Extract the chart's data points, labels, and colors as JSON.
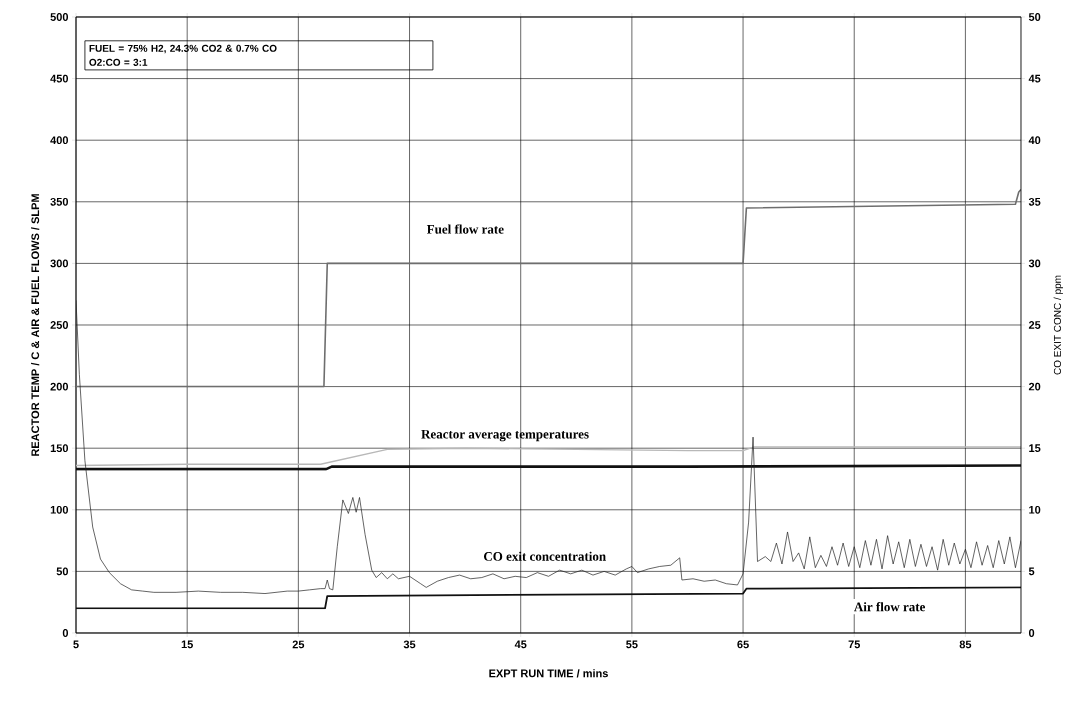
{
  "chart_data": {
    "type": "line",
    "xlabel": "EXPT RUN TIME / mins",
    "ylabel": "REACTOR TEMP / C & AIR & FUEL FLOWS / SLPM",
    "y2label": "CO EXIT CONC / ppm",
    "annotations": [
      "FUEL = 75% H2, 24.3% CO2 & 0.7% CO",
      "O2:CO = 3:1"
    ],
    "xlim": [
      5,
      90
    ],
    "xticks": [
      5,
      15,
      25,
      35,
      45,
      55,
      65,
      75,
      85
    ],
    "ylim": [
      0,
      500
    ],
    "yticks": [
      0,
      50,
      100,
      150,
      200,
      250,
      300,
      350,
      400,
      450,
      500
    ],
    "y2lim": [
      0,
      50
    ],
    "y2ticks": [
      0,
      5,
      10,
      15,
      20,
      25,
      30,
      35,
      40,
      45,
      50
    ],
    "grid": true,
    "series": [
      {
        "name": "Fuel flow rate",
        "color": "#6e6e6e",
        "x": [
          5,
          27.3,
          27.6,
          65,
          65.3,
          89.5,
          89.8,
          90
        ],
        "values": [
          200,
          200,
          300,
          300,
          345,
          348,
          358,
          360
        ]
      },
      {
        "name": "Reactor average temperatures",
        "color": "#b8b8b8",
        "x": [
          5,
          15,
          25,
          27,
          29,
          31,
          33,
          40,
          50,
          60,
          65,
          66,
          70,
          80,
          90
        ],
        "values": [
          136,
          137,
          137,
          137,
          141,
          145,
          149,
          150,
          149,
          148,
          148,
          151,
          151,
          151,
          151
        ]
      },
      {
        "color": "#111111",
        "x": [
          5,
          15,
          27.5,
          28,
          40,
          60,
          90
        ],
        "values": [
          133,
          133,
          133,
          135,
          135,
          135,
          136
        ]
      },
      {
        "name": "Air flow rate",
        "color": "#111111",
        "x": [
          5,
          27.4,
          27.6,
          65,
          65.3,
          90
        ],
        "values": [
          20,
          20,
          30,
          32,
          36,
          37
        ]
      },
      {
        "name": "CO exit concentration",
        "color": "#222222",
        "axis": "y2",
        "x": [
          5,
          5.3,
          5.8,
          6.5,
          7.2,
          8,
          9,
          10,
          11,
          12,
          14,
          16,
          18,
          20,
          22,
          24,
          25,
          26,
          27,
          27.4,
          27.6,
          27.8,
          28.1,
          28.5,
          29,
          29.5,
          29.9,
          30.2,
          30.5,
          31,
          31.6,
          32,
          32.5,
          33,
          33.5,
          34,
          35,
          36,
          36.5,
          37.5,
          38.5,
          39.5,
          40.5,
          41.5,
          42.5,
          43.5,
          44.5,
          45.5,
          46.5,
          47.5,
          48.5,
          49.5,
          50.5,
          51.5,
          52.5,
          53.5,
          54.5,
          55,
          55.5,
          56.5,
          57.5,
          58.5,
          59.3,
          59.5,
          60.5,
          61.5,
          62.5,
          63.5,
          64.5,
          65,
          65.5,
          65.9,
          66.3,
          67,
          67.5,
          68,
          68.5,
          69,
          69.5,
          70,
          70.5,
          71,
          71.5,
          72,
          72.5,
          73,
          73.5,
          74,
          74.5,
          75,
          75.5,
          76,
          76.5,
          77,
          77.5,
          78,
          78.5,
          79,
          79.5,
          80,
          80.5,
          81,
          81.5,
          82,
          82.5,
          83,
          83.5,
          84,
          84.5,
          85,
          85.5,
          86,
          86.5,
          87,
          87.5,
          88,
          88.5,
          89,
          89.5,
          90
        ],
        "values": [
          27,
          21,
          14,
          8.6,
          6,
          4.9,
          4,
          3.5,
          3.4,
          3.3,
          3.3,
          3.4,
          3.3,
          3.3,
          3.2,
          3.4,
          3.4,
          3.5,
          3.6,
          3.6,
          4.3,
          3.6,
          3.5,
          7,
          10.8,
          9.7,
          11,
          9.8,
          11,
          8,
          5.1,
          4.5,
          4.9,
          4.4,
          4.8,
          4.4,
          4.6,
          4.0,
          3.7,
          4.2,
          4.5,
          4.7,
          4.4,
          4.5,
          4.8,
          4.4,
          4.6,
          4.5,
          4.9,
          4.6,
          5.1,
          4.8,
          5.1,
          4.7,
          5.0,
          4.7,
          5.2,
          5.4,
          4.9,
          5.2,
          5.4,
          5.5,
          6.1,
          4.3,
          4.4,
          4.2,
          4.3,
          4.0,
          3.9,
          4.8,
          9,
          15.9,
          5.8,
          6.2,
          5.8,
          7.3,
          5.6,
          8.2,
          5.8,
          6.5,
          5.2,
          7.8,
          5.3,
          6.3,
          5.4,
          7.0,
          5.5,
          7.3,
          5.4,
          7.0,
          5.3,
          7.5,
          5.5,
          7.6,
          5.2,
          7.9,
          5.6,
          7.4,
          5.3,
          7.6,
          5.4,
          7.2,
          5.4,
          7.0,
          5.1,
          7.6,
          5.5,
          7.3,
          5.6,
          6.8,
          5.3,
          7.4,
          5.5,
          7.1,
          5.3,
          7.5,
          5.6,
          7.8,
          5.3,
          7.5
        ]
      }
    ]
  }
}
